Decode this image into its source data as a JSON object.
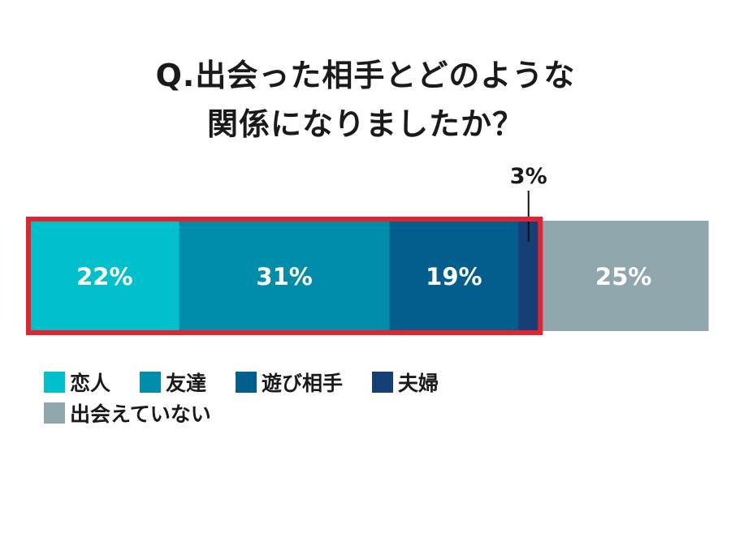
{
  "title": {
    "line1": "Q.出会った相手とどのような",
    "line2": "関係になりましたか？"
  },
  "chart_data": {
    "type": "bar",
    "orientation": "horizontal-stacked",
    "categories": [
      "恋人",
      "友達",
      "遊び相手",
      "夫婦",
      "出会えていない"
    ],
    "values": [
      22,
      31,
      19,
      3,
      25
    ],
    "value_labels": [
      "22%",
      "31%",
      "19%",
      "3%",
      "25%"
    ],
    "colors": [
      "#00c1cb",
      "#008daa",
      "#025e8c",
      "#163f75",
      "#8fa6ad"
    ],
    "highlight": {
      "from": 0,
      "to": 3,
      "color": "#e3232f"
    },
    "legend_placement": "bottom-left",
    "grid": false
  }
}
